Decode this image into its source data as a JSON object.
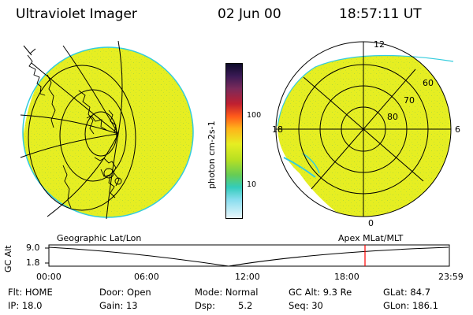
{
  "header": {
    "title": "Ultraviolet Imager",
    "date": "02 Jun 00",
    "time": "18:57:11 UT"
  },
  "colorbar": {
    "unit_label": "photon cm-2s-1",
    "ticks": [
      "100",
      "10"
    ]
  },
  "polar_plot": {
    "mlt_labels": [
      "12",
      "18",
      "6",
      "0"
    ],
    "mlat_labels": [
      "60",
      "70",
      "80"
    ]
  },
  "panel_captions": {
    "left": "Geographic Lat/Lon",
    "right": "Apex MLat/MLT"
  },
  "altitude_plot": {
    "ylabel": "GC Alt",
    "yticks": [
      "9.0",
      "1.8"
    ],
    "xticks": [
      "00:00",
      "06:00",
      "12:00",
      "18:00",
      "23:59"
    ]
  },
  "status": {
    "flt": "Flt: HOME",
    "ip": "IP: 18.0",
    "door": "Door: Open",
    "gain": "Gain: 13",
    "mode": "Mode: Normal",
    "dsp_label": "Dsp:",
    "dsp_value": "5.2",
    "gc_alt": "GC Alt: 9.3 Re",
    "seq": "Seq: 30",
    "glat": "GLat: 84.7",
    "glon": "GLon: 186.1"
  },
  "colors": {
    "image_fill": "#e6ee22",
    "image_edge": "#33ccdd",
    "marker": "#ff0000"
  }
}
